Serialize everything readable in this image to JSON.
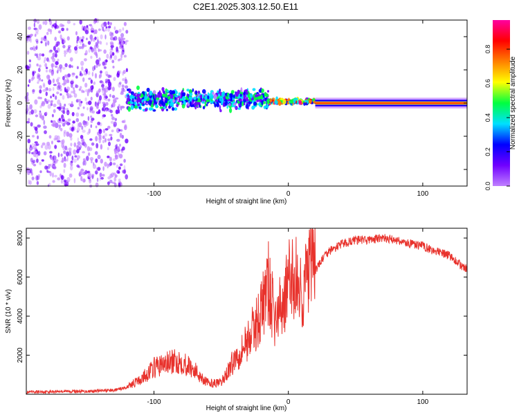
{
  "title": "C2E1.2025.303.12.50.E11",
  "chart_data": [
    {
      "type": "heatmap",
      "xlabel": "Height of straight line (km)",
      "ylabel": "Frequency (Hz)",
      "xlim": [
        -195,
        133
      ],
      "ylim": [
        -50,
        50
      ],
      "xticks": [
        -100,
        0,
        100
      ],
      "yticks": [
        -40,
        -20,
        0,
        20,
        40
      ],
      "colorbar": {
        "label": "Normalized spectral amplitude",
        "range": [
          0,
          0.97
        ],
        "ticks": [
          0.0,
          0.2,
          0.4,
          0.6,
          0.8
        ],
        "tick_labels": [
          "0.0",
          "0.2",
          "0.4",
          "0.6",
          "0.8"
        ],
        "colors": [
          "#ffffff",
          "#c080ff",
          "#7000ff",
          "#0000ff",
          "#00e0ff",
          "#00ff40",
          "#ffff00",
          "#ff8000",
          "#ff0000",
          "#ff00a0"
        ]
      },
      "description_segments": [
        {
          "x_range": [
            -195,
            -120
          ],
          "freq_center": 0,
          "freq_spread": 50,
          "amplitude": 0.15
        },
        {
          "x_range": [
            -120,
            -15
          ],
          "freq_center": 2,
          "freq_spread": 8,
          "amplitude": 0.35
        },
        {
          "x_range": [
            -15,
            20
          ],
          "freq_center": 1,
          "freq_spread": 2,
          "amplitude": 0.6
        },
        {
          "x_range": [
            20,
            133
          ],
          "freq_center": 0,
          "freq_spread": 1,
          "amplitude": 0.9
        }
      ]
    },
    {
      "type": "line",
      "xlabel": "Height of straight line (km)",
      "ylabel": "SNR (10 * v/v)",
      "xlim": [
        -195,
        133
      ],
      "ylim": [
        0,
        8500
      ],
      "xticks": [
        -100,
        0,
        100
      ],
      "yticks": [
        2000,
        4000,
        6000,
        8000
      ],
      "color": "#e8322c",
      "series": [
        {
          "name": "SNR",
          "x": [
            -195,
            -170,
            -150,
            -130,
            -120,
            -110,
            -100,
            -90,
            -80,
            -70,
            -60,
            -50,
            -40,
            -35,
            -30,
            -25,
            -20,
            -15,
            -10,
            -5,
            0,
            5,
            10,
            15,
            20,
            25,
            30,
            40,
            50,
            60,
            70,
            80,
            90,
            100,
            110,
            120,
            130,
            133
          ],
          "y": [
            100,
            150,
            150,
            200,
            350,
            650,
            1200,
            1400,
            1500,
            1100,
            500,
            500,
            1600,
            2000,
            2500,
            3000,
            3800,
            5000,
            3300,
            4000,
            5000,
            5300,
            4500,
            5500,
            6300,
            6900,
            7300,
            7700,
            7900,
            7900,
            8000,
            7900,
            7700,
            7600,
            7300,
            7100,
            6500,
            6400
          ]
        }
      ]
    }
  ]
}
